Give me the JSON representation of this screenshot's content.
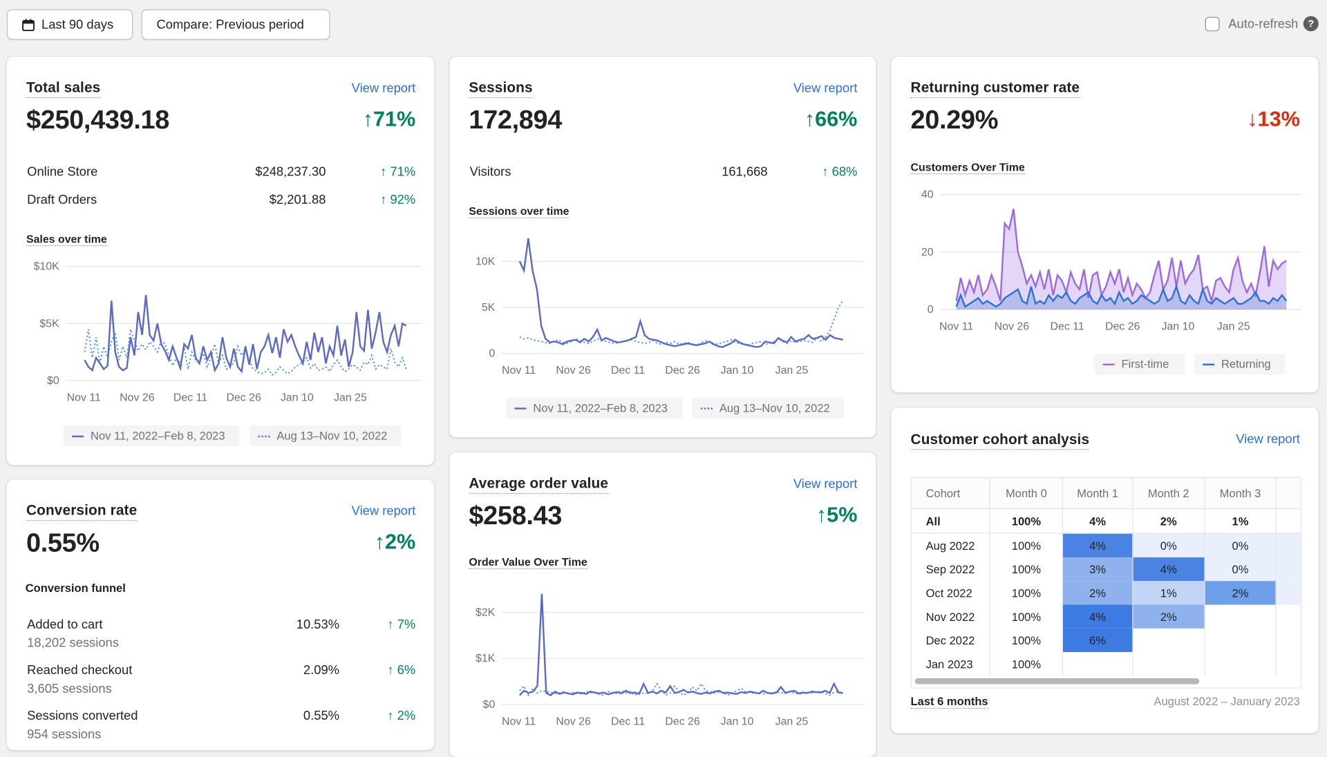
{
  "toolbar": {
    "date_range_label": "Last 90 days",
    "compare_label": "Compare: Previous period",
    "auto_refresh_label": "Auto-refresh",
    "auto_refresh_checked": false
  },
  "total_sales": {
    "title": "Total sales",
    "view_report": "View report",
    "value": "$250,439.18",
    "change": "↑71%",
    "rows": [
      {
        "label": "Online Store",
        "value": "$248,237.30",
        "change": "↑ 71%"
      },
      {
        "label": "Draft Orders",
        "value": "$2,201.88",
        "change": "↑ 92%"
      }
    ],
    "chart_title": "Sales over time",
    "legend_current": "Nov 11, 2022–Feb 8, 2023",
    "legend_previous": "Aug 13–Nov 10, 2022"
  },
  "sessions": {
    "title": "Sessions",
    "view_report": "View report",
    "value": "172,894",
    "change": "↑66%",
    "rows": [
      {
        "label": "Visitors",
        "value": "161,668",
        "change": "↑ 68%"
      }
    ],
    "chart_title": "Sessions over time",
    "legend_current": "Nov 11, 2022–Feb 8, 2023",
    "legend_previous": "Aug 13–Nov 10, 2022"
  },
  "returning": {
    "title": "Returning customer rate",
    "value": "20.29%",
    "change": "↓13%",
    "chart_title": "Customers Over Time",
    "legend_first": "First-time",
    "legend_returning": "Returning"
  },
  "conversion": {
    "title": "Conversion rate",
    "view_report": "View report",
    "value": "0.55%",
    "change": "↑2%",
    "funnel_title": "Conversion funnel",
    "rows": [
      {
        "label": "Added to cart",
        "sub": "18,202 sessions",
        "value": "10.53%",
        "change": "↑ 7%"
      },
      {
        "label": "Reached checkout",
        "sub": "3,605 sessions",
        "value": "2.09%",
        "change": "↑ 6%"
      },
      {
        "label": "Sessions converted",
        "sub": "954 sessions",
        "value": "0.55%",
        "change": "↑ 2%"
      }
    ]
  },
  "aov": {
    "title": "Average order value",
    "view_report": "View report",
    "value": "$258.43",
    "change": "↑5%",
    "chart_title": "Order Value Over Time"
  },
  "cohort": {
    "title": "Customer cohort analysis",
    "view_report": "View report",
    "headers": [
      "Cohort",
      "Month 0",
      "Month 1",
      "Month 2",
      "Month 3"
    ],
    "all_row": [
      "All",
      "100%",
      "4%",
      "2%",
      "1%"
    ],
    "rows": [
      [
        "Aug 2022",
        "100%",
        "4%",
        "0%",
        "0%"
      ],
      [
        "Sep 2022",
        "100%",
        "3%",
        "4%",
        "0%"
      ],
      [
        "Oct 2022",
        "100%",
        "2%",
        "1%",
        "2%"
      ],
      [
        "Nov 2022",
        "100%",
        "4%",
        "2%",
        ""
      ],
      [
        "Dec 2022",
        "100%",
        "6%",
        "",
        ""
      ],
      [
        "Jan 2023",
        "100%",
        "",
        "",
        ""
      ]
    ],
    "footer_left": "Last 6 months",
    "footer_right": "August 2022 – January 2023"
  },
  "colors": {
    "current_series": "#5c6ac4",
    "previous_series": "#5c9ad4",
    "first_time": "#9c6ade",
    "returning": "#2e72d2",
    "positive": "#008060",
    "negative": "#d72c0d",
    "link": "#2c6ecb"
  },
  "chart_data": [
    {
      "type": "line",
      "title": "Sales over time",
      "x_ticks": [
        "Nov 11",
        "Nov 26",
        "Dec 11",
        "Dec 26",
        "Jan 10",
        "Jan 25"
      ],
      "y_ticks": [
        "$0",
        "$5K",
        "$10K"
      ],
      "ylim": [
        0,
        10000
      ],
      "series": [
        {
          "name": "Nov 11, 2022–Feb 8, 2023",
          "values": [
            1800,
            1200,
            900,
            2000,
            1500,
            1000,
            1300,
            7000,
            2500,
            1200,
            900,
            1100,
            3800,
            2200,
            6000,
            4000,
            7500,
            4000,
            3500,
            5000,
            3200,
            2600,
            1800,
            3000,
            2000,
            1100,
            3200,
            2800,
            4000,
            2000,
            1500,
            3000,
            1800,
            2500,
            900,
            1500,
            3800,
            2000,
            1200,
            2800,
            1200,
            800,
            3000,
            1400,
            3200,
            1000,
            2500,
            3000,
            4000,
            2400,
            3800,
            2000,
            4500,
            3400,
            4000,
            3000,
            2200,
            1500,
            3400,
            1800,
            4200,
            2500,
            3800,
            1500,
            3000,
            2200,
            4800,
            2200,
            3600,
            1200,
            2500,
            6000,
            3000,
            2600,
            6200,
            2800,
            4200,
            6000,
            3400,
            2500,
            4000,
            4800,
            3000,
            5000,
            4800
          ]
        },
        {
          "name": "Aug 13–Nov 10, 2022",
          "values": [
            2500,
            4500,
            2000,
            3800,
            1500,
            3000,
            2000,
            3400,
            4200,
            1800,
            3000,
            2000,
            4500,
            3500,
            2600,
            3200,
            2700,
            3400,
            3000,
            2500,
            3500,
            3200,
            2200,
            1300,
            2000,
            1500,
            3000,
            1000,
            2500,
            1800,
            1500,
            2400,
            1200,
            2000,
            3200,
            1500,
            2200,
            1000,
            1200,
            1600,
            3000,
            2200,
            2800,
            1800,
            1000,
            800,
            600,
            700,
            1000,
            500,
            700,
            1200,
            900,
            600,
            800,
            1200,
            1400,
            1600,
            2000,
            1100,
            1500,
            900,
            1000,
            1200,
            800,
            1400,
            1800,
            1200,
            800,
            1000,
            1400,
            1200,
            900,
            1600,
            1400,
            2200,
            1000,
            1400,
            1200,
            1000,
            2800,
            1600,
            1200,
            2000,
            1000
          ]
        }
      ]
    },
    {
      "type": "line",
      "title": "Sessions over time",
      "x_ticks": [
        "Nov 11",
        "Nov 26",
        "Dec 11",
        "Dec 26",
        "Jan 10",
        "Jan 25"
      ],
      "y_ticks": [
        "0",
        "5K",
        "10K"
      ],
      "ylim": [
        0,
        10000
      ],
      "series": [
        {
          "name": "Nov 11, 2022–Feb 8, 2023",
          "values": [
            10000,
            9000,
            12500,
            9000,
            7000,
            3000,
            1600,
            1200,
            1300,
            1200,
            1000,
            1300,
            1400,
            1500,
            1200,
            1600,
            1300,
            1800,
            2600,
            1400,
            1700,
            1500,
            1300,
            1200,
            1300,
            1400,
            1600,
            1800,
            3500,
            2000,
            1600,
            1500,
            1400,
            1200,
            1000,
            900,
            800,
            900,
            1000,
            1100,
            1000,
            900,
            1000,
            1100,
            1300,
            1000,
            800,
            700,
            900,
            1100,
            1500,
            1200,
            1000,
            900,
            800,
            700,
            800,
            1300,
            1200,
            1100,
            1700,
            1400,
            1200,
            1800,
            1300,
            1500,
            1600,
            2000,
            1600,
            1700,
            1900,
            1500,
            2000,
            1700,
            1600,
            1500
          ]
        },
        {
          "name": "Aug 13–Nov 10, 2022",
          "values": [
            1800,
            1600,
            1700,
            1500,
            1400,
            1300,
            1200,
            1100,
            1300,
            1500,
            1200,
            1100,
            1300,
            1600,
            1400,
            1200,
            1100,
            1300,
            1600,
            1500,
            1300,
            1200,
            1100,
            1200,
            1300,
            1400,
            1500,
            1300,
            1200,
            1100,
            1200,
            1400,
            1100,
            1000,
            1200,
            1100,
            1300,
            1000,
            1100,
            1200,
            1000,
            900,
            1100,
            1400,
            1300,
            1100,
            1000,
            1200,
            1300,
            1500,
            1200,
            1100,
            1000,
            900,
            1100,
            1200,
            1300,
            1000,
            1100,
            1300,
            1600,
            1300,
            1100,
            1400,
            1200,
            1300,
            1400,
            1300,
            1200,
            1700,
            1300,
            1800,
            2500,
            3800,
            5000,
            5800
          ]
        }
      ]
    },
    {
      "type": "area",
      "title": "Customers Over Time",
      "x_ticks": [
        "Nov 11",
        "Nov 26",
        "Dec 11",
        "Dec 26",
        "Jan 10",
        "Jan 25"
      ],
      "y_ticks": [
        "0",
        "20",
        "40"
      ],
      "ylim": [
        0,
        40
      ],
      "series": [
        {
          "name": "First-time",
          "values": [
            3,
            11,
            5,
            10,
            6,
            12,
            5,
            7,
            12,
            8,
            3,
            30,
            28,
            35,
            20,
            15,
            9,
            12,
            8,
            13,
            7,
            14,
            5,
            12,
            10,
            6,
            13,
            9,
            7,
            14,
            4,
            12,
            13,
            5,
            8,
            13,
            9,
            14,
            6,
            11,
            5,
            9,
            7,
            4,
            6,
            12,
            17,
            7,
            10,
            18,
            8,
            17,
            9,
            12,
            14,
            19,
            7,
            8,
            3,
            10,
            11,
            8,
            6,
            14,
            18,
            10,
            6,
            9,
            5,
            13,
            22,
            8,
            17,
            14,
            16,
            17
          ]
        },
        {
          "name": "Returning",
          "values": [
            1,
            5,
            1,
            2,
            3,
            4,
            2,
            3,
            2,
            1,
            2,
            4,
            5,
            6,
            7,
            3,
            2,
            8,
            2,
            3,
            2,
            5,
            3,
            5,
            4,
            6,
            3,
            2,
            4,
            5,
            6,
            3,
            2,
            5,
            3,
            4,
            2,
            6,
            3,
            4,
            2,
            3,
            5,
            4,
            3,
            2,
            3,
            7,
            3,
            4,
            8,
            3,
            2,
            5,
            3,
            2,
            7,
            3,
            2,
            4,
            3,
            2,
            3,
            4,
            2,
            2,
            3,
            4,
            6,
            3,
            3,
            2,
            4,
            3,
            5,
            3
          ]
        }
      ]
    },
    {
      "type": "line",
      "title": "Order Value Over Time",
      "x_ticks": [
        "Nov 11",
        "Nov 26",
        "Dec 11",
        "Dec 26",
        "Jan 10",
        "Jan 25"
      ],
      "y_ticks": [
        "$0",
        "$1K",
        "$2K"
      ],
      "ylim": [
        0,
        2000
      ],
      "series": [
        {
          "name": "Nov 11, 2022–Feb 8, 2023",
          "values": [
            200,
            300,
            250,
            280,
            400,
            2400,
            250,
            200,
            280,
            230,
            260,
            240,
            220,
            260,
            250,
            230,
            280,
            260,
            240,
            260,
            220,
            250,
            270,
            240,
            300,
            250,
            260,
            230,
            450,
            250,
            280,
            240,
            300,
            260,
            400,
            250,
            270,
            320,
            260,
            280,
            250,
            230,
            260,
            240,
            280,
            300,
            250,
            260,
            240,
            230,
            270,
            250,
            280,
            260,
            240,
            300,
            250,
            240,
            260,
            380,
            250,
            280,
            300,
            240,
            260,
            250,
            280,
            270,
            260,
            300,
            250,
            450,
            260,
            250
          ]
        },
        {
          "name": "Aug 13–Nov 10, 2022",
          "values": [
            300,
            400,
            200,
            350,
            250,
            300,
            280,
            260,
            240,
            250,
            280,
            220,
            260,
            240,
            230,
            280,
            260,
            250,
            220,
            200,
            280,
            260,
            240,
            300,
            250,
            280,
            200,
            260,
            240,
            250,
            300,
            450,
            300,
            200,
            250,
            400,
            280,
            200,
            260,
            380,
            300,
            450,
            300,
            280,
            250,
            270,
            260,
            200,
            250,
            300,
            350,
            280,
            260,
            240,
            250,
            230,
            260,
            240,
            280,
            250,
            260,
            280,
            250,
            230,
            240,
            260,
            250,
            270,
            280,
            240,
            200,
            260,
            280,
            250
          ]
        }
      ]
    }
  ]
}
